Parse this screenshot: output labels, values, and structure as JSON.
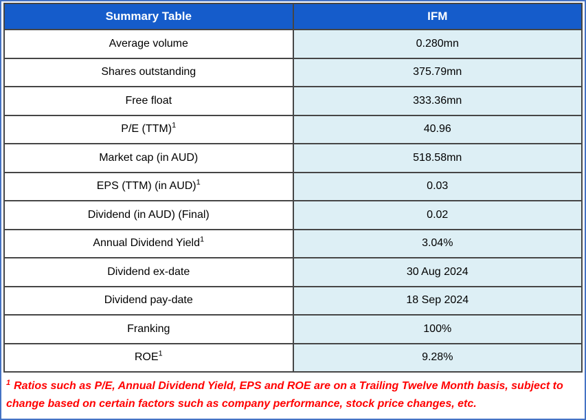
{
  "colors": {
    "frame_border": "#4472C4",
    "grid": "#454545",
    "header_bg": "#155CCB",
    "header_text": "#FFFFFF",
    "value_bg": "#DDEFF5",
    "body_text": "#000000",
    "footnote_red": "#FF0000"
  },
  "table": {
    "headers": [
      {
        "label": "Summary Table"
      },
      {
        "label": "IFM"
      }
    ],
    "rows": [
      {
        "label": "Average volume",
        "sup": "",
        "value": "0.280mn"
      },
      {
        "label": "Shares outstanding",
        "sup": "",
        "value": "375.79mn"
      },
      {
        "label": "Free float",
        "sup": "",
        "value": "333.36mn"
      },
      {
        "label": "P/E (TTM)",
        "sup": "1",
        "value": "40.96"
      },
      {
        "label": "Market cap (in AUD)",
        "sup": "",
        "value": "518.58mn"
      },
      {
        "label": "EPS (TTM) (in AUD)",
        "sup": "1",
        "value": "0.03"
      },
      {
        "label": "Dividend (in AUD) (Final)",
        "sup": "",
        "value": "0.02"
      },
      {
        "label": "Annual Dividend Yield",
        "sup": "1",
        "value": "3.04%"
      },
      {
        "label": "Dividend ex-date",
        "sup": "",
        "value": "30 Aug 2024"
      },
      {
        "label": "Dividend pay-date",
        "sup": "",
        "value": "18 Sep 2024"
      },
      {
        "label": "Franking",
        "sup": "",
        "value": "100%"
      },
      {
        "label": "ROE",
        "sup": "1",
        "value": "9.28%"
      }
    ]
  },
  "footnote": {
    "sup": "1",
    "text": "Ratios such as P/E, Annual Dividend Yield, EPS and ROE are on a Trailing Twelve Month basis, subject to change based on certain factors such as company performance, stock price changes, etc."
  }
}
